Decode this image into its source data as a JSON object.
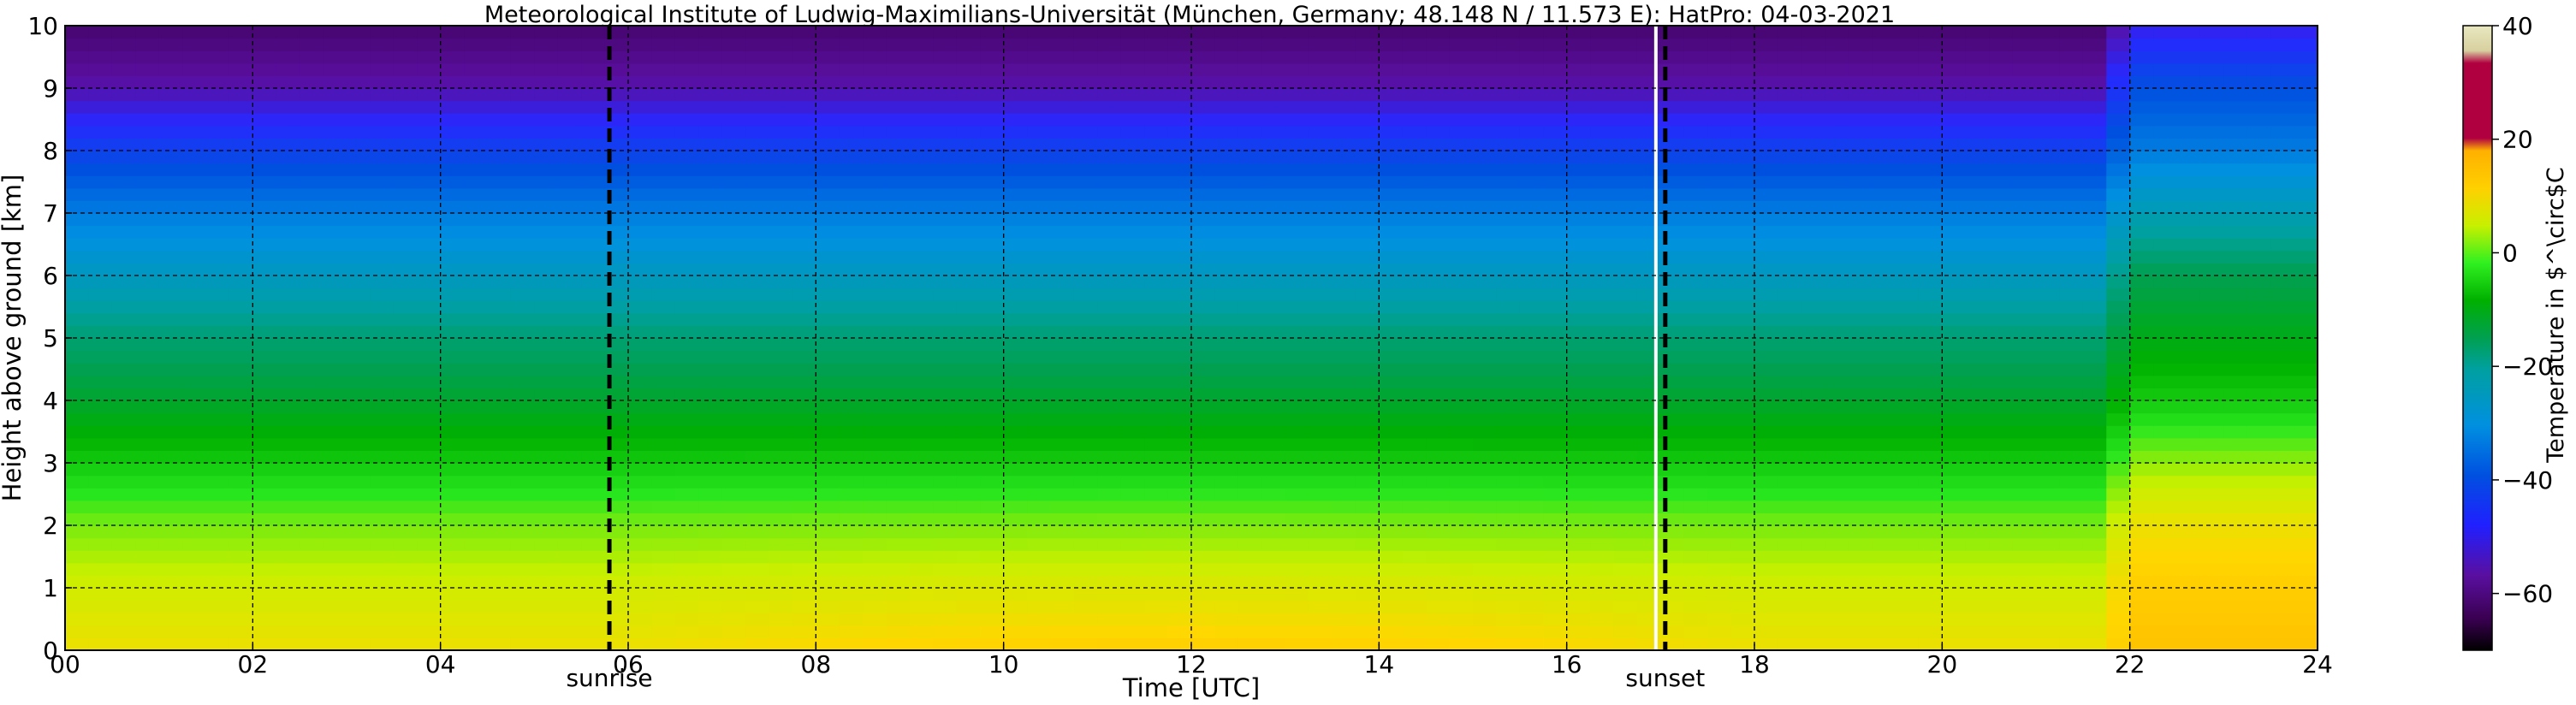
{
  "chart_data": {
    "type": "heatmap",
    "title": "Meteorological Institute of Ludwig-Maximilians-Universität (München, Germany; 48.148 N / 11.573 E):    HatPro: 04-03-2021",
    "xlabel": "Time [UTC]",
    "ylabel": "Height above ground [km]",
    "xlim": [
      0,
      24
    ],
    "ylim": [
      0,
      10
    ],
    "x_ticks": [
      "00",
      "02",
      "04",
      "06",
      "08",
      "10",
      "12",
      "14",
      "16",
      "18",
      "20",
      "22",
      "24"
    ],
    "y_ticks": [
      "0",
      "1",
      "2",
      "3",
      "4",
      "5",
      "6",
      "7",
      "8",
      "9",
      "10"
    ],
    "grid": true,
    "markers": [
      {
        "label": "sunrise",
        "time": 5.8
      },
      {
        "label": "sunset",
        "time": 17.05
      }
    ],
    "data_gap_time": 16.95,
    "colorbar": {
      "label": "Temperature in $^\\circ$C",
      "range": [
        -70,
        40
      ],
      "ticks": [
        "40",
        "20",
        "0",
        "−20",
        "−40",
        "−60"
      ],
      "tick_values": [
        40,
        20,
        0,
        -20,
        -40,
        -60
      ]
    },
    "temperature_profile_typical": {
      "heights_km": [
        0,
        1,
        2,
        3,
        4,
        5,
        6,
        7,
        8,
        9,
        10
      ],
      "temp_c": [
        8,
        5,
        1,
        -5,
        -12,
        -18,
        -27,
        -35,
        -45,
        -56,
        -62
      ]
    },
    "late_evening_profile_22utc": {
      "heights_km": [
        0,
        1,
        2,
        3,
        4,
        5,
        6,
        7,
        8,
        9,
        10
      ],
      "temp_c": [
        14,
        12,
        8,
        2,
        -5,
        -10,
        -15,
        -25,
        -35,
        -42,
        -52
      ]
    },
    "event_start_time": 21.65
  }
}
